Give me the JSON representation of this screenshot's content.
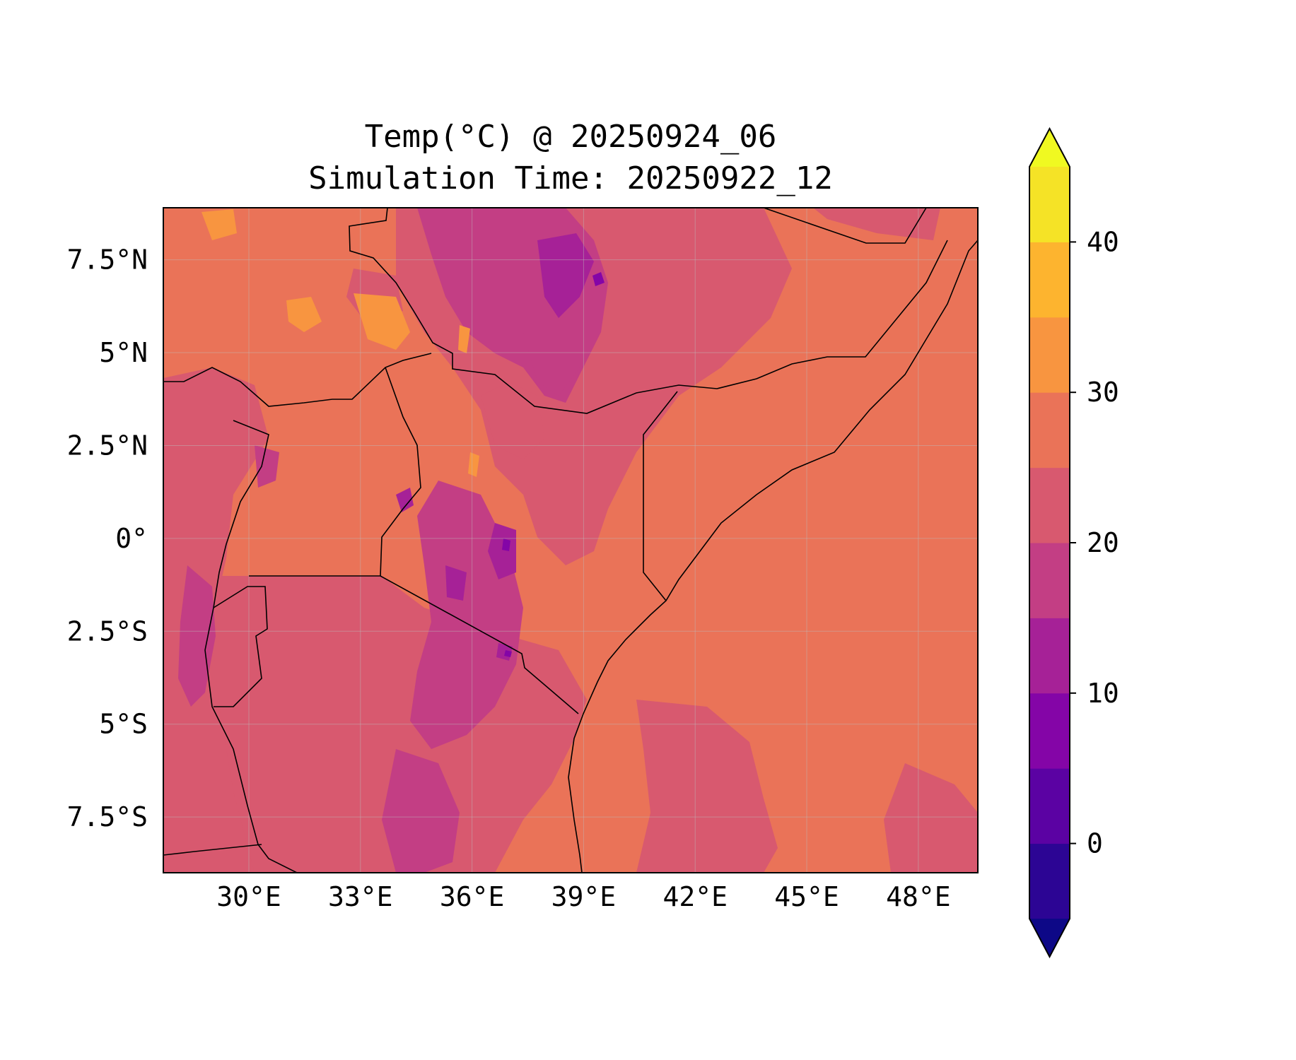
{
  "map": {
    "title_line1": "Temp(°C) @ 20250924_06",
    "title_line2": "Simulation Time: 20250922_12",
    "variable": "Temperature (°C)",
    "projection": "PlateCarree",
    "extent": {
      "lon_min": 27.7,
      "lon_max": 49.6,
      "lat_min": -9.0,
      "lat_max": 8.9
    },
    "lon_ticks": [
      {
        "value": 30,
        "label": "30°E"
      },
      {
        "value": 33,
        "label": "33°E"
      },
      {
        "value": 36,
        "label": "36°E"
      },
      {
        "value": 39,
        "label": "39°E"
      },
      {
        "value": 42,
        "label": "42°E"
      },
      {
        "value": 45,
        "label": "45°E"
      },
      {
        "value": 48,
        "label": "48°E"
      }
    ],
    "lat_ticks": [
      {
        "value": 7.5,
        "label": "7.5°N"
      },
      {
        "value": 5,
        "label": "5°N"
      },
      {
        "value": 2.5,
        "label": "2.5°N"
      },
      {
        "value": 0,
        "label": "0°"
      },
      {
        "value": -2.5,
        "label": "2.5°S"
      },
      {
        "value": -5,
        "label": "5°S"
      },
      {
        "value": -7.5,
        "label": "7.5°S"
      }
    ],
    "gridlines": true,
    "borders": true,
    "coastlines": true
  },
  "colorbar": {
    "position": "right",
    "extend": "both",
    "min": -5,
    "max": 45,
    "levels": [
      -5,
      0,
      5,
      10,
      15,
      20,
      25,
      30,
      35,
      40,
      45
    ],
    "colors": [
      "#2c0594",
      "#5b02a3",
      "#8405a7",
      "#a62197",
      "#c33e84",
      "#d8596f",
      "#ea7358",
      "#f89540",
      "#fdb42f",
      "#f5e326"
    ],
    "under_color": "#0d0887",
    "over_color": "#f0f921",
    "tick_values": [
      0,
      10,
      20,
      30,
      40
    ],
    "tick_labels": [
      "0",
      "10",
      "20",
      "30",
      "40"
    ]
  }
}
